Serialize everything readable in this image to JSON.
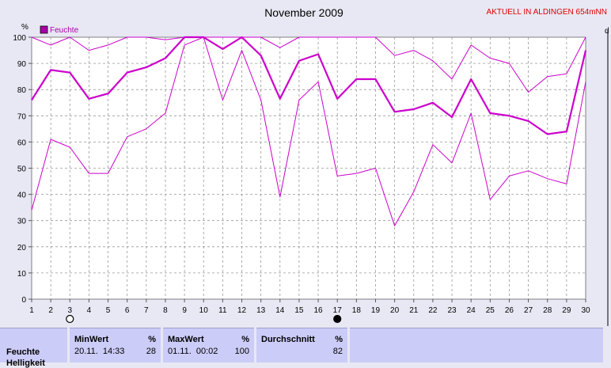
{
  "header": {
    "title": "November 2009",
    "station": "AKTUELL IN ALDINGEN 654mNN",
    "right_cut": "d"
  },
  "chart_data": {
    "type": "line",
    "title": "November 2009",
    "ylabel": "%",
    "ylim": [
      0,
      100
    ],
    "yticks": [
      0,
      10,
      20,
      30,
      40,
      50,
      60,
      70,
      80,
      90,
      100
    ],
    "x": [
      1,
      2,
      3,
      4,
      5,
      6,
      7,
      8,
      9,
      10,
      11,
      12,
      13,
      14,
      15,
      16,
      17,
      18,
      19,
      20,
      21,
      22,
      23,
      24,
      25,
      26,
      27,
      28,
      29,
      30
    ],
    "grid": true,
    "legend": {
      "label": "Feuchte",
      "position": "top-left"
    },
    "moon_phases": [
      {
        "day": 3,
        "phase": "full",
        "icon": "full-moon-icon"
      },
      {
        "day": 17,
        "phase": "new",
        "icon": "new-moon-icon"
      }
    ],
    "series": [
      {
        "name": "Feuchte",
        "role": "max",
        "color": "#cc00cc",
        "values": [
          100,
          97,
          100,
          95,
          97,
          100,
          100,
          99,
          100,
          100,
          100,
          100,
          100,
          96,
          100,
          100,
          100,
          100,
          100,
          93,
          95,
          91,
          84,
          97,
          92,
          90,
          79,
          85,
          86,
          100
        ]
      },
      {
        "name": "Feuchte",
        "role": "avg",
        "color": "#cc00cc",
        "values": [
          76,
          87.5,
          86.5,
          76.5,
          78.5,
          86.5,
          88.5,
          92,
          100,
          100,
          95.5,
          100,
          93,
          76.5,
          91,
          93.5,
          76.5,
          84,
          84,
          71.5,
          72.5,
          75,
          69.5,
          84,
          71,
          70,
          68,
          63,
          64,
          95
        ]
      },
      {
        "name": "Feuchte",
        "role": "min",
        "color": "#cc00cc",
        "values": [
          34,
          61,
          58,
          48,
          48,
          62,
          65,
          71,
          97,
          100,
          76,
          95,
          76,
          39,
          76,
          83,
          47,
          48,
          50,
          28,
          41,
          59,
          52,
          71,
          38,
          47,
          49,
          46,
          44,
          83
        ]
      }
    ]
  },
  "stats": {
    "row_label": "Feuchte",
    "row_label_2": "Helligkeit",
    "min": {
      "header": "MinWert",
      "unit": "%",
      "time": "20.11.  14:33",
      "value": "28"
    },
    "max": {
      "header": "MaxWert",
      "unit": "%",
      "time": "01.11.  00:02",
      "value": "100"
    },
    "avg": {
      "header": "Durchschnitt",
      "unit": "%",
      "value": "82"
    }
  }
}
